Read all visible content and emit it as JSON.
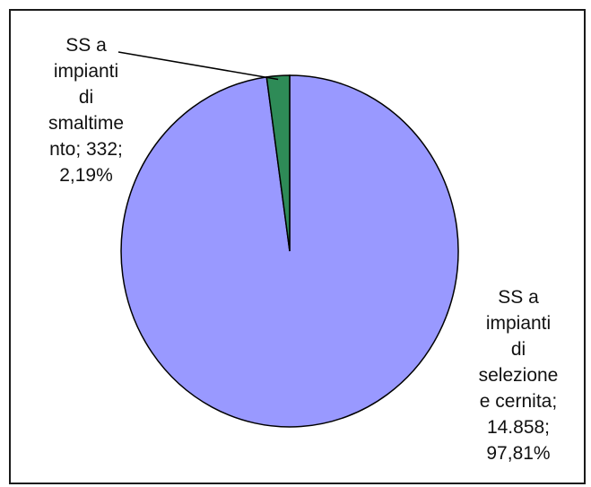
{
  "chart_data": {
    "type": "pie",
    "title": "",
    "slices": [
      {
        "label": "SS a impianti di smaltimento",
        "value": 332,
        "value_label": "332",
        "percent_label": "2,19%",
        "color": "#2e8b57"
      },
      {
        "label": "SS a impianti di selezione e cernita",
        "value": 14858,
        "value_label": "14.858",
        "percent_label": "97,81%",
        "color": "#9999ff"
      }
    ],
    "labels": {
      "small": "SS a\nimpianti\ndi\nsmaltime\nnto; 332;\n2,19%",
      "large": "SS a\nimpianti\ndi\nselezione\ne cernita;\n14.858;\n97,81%"
    },
    "legend": "none"
  }
}
